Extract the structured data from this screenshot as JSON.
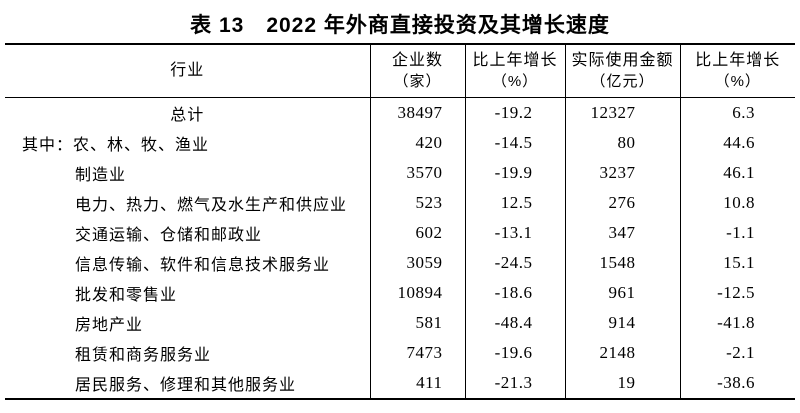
{
  "title": "表 13　2022 年外商直接投资及其增长速度",
  "colors": {
    "background": "#ffffff",
    "text": "#000000",
    "border": "#000000"
  },
  "table": {
    "columns": [
      {
        "label": "行业",
        "unit": ""
      },
      {
        "label": "企业数",
        "unit": "（家）"
      },
      {
        "label": "比上年增长",
        "unit": "（%）"
      },
      {
        "label": "实际使用金额",
        "unit": "（亿元）"
      },
      {
        "label": "比上年增长",
        "unit": "（%）"
      }
    ],
    "rows": [
      {
        "industry": "总计",
        "enterprises": "38497",
        "enterprise_growth": "-19.2",
        "utilized_amount": "12327",
        "amount_growth": "6.3"
      },
      {
        "industry": "其中：农、林、牧、渔业",
        "enterprises": "420",
        "enterprise_growth": "-14.5",
        "utilized_amount": "80",
        "amount_growth": "44.6"
      },
      {
        "industry": "制造业",
        "enterprises": "3570",
        "enterprise_growth": "-19.9",
        "utilized_amount": "3237",
        "amount_growth": "46.1"
      },
      {
        "industry": "电力、热力、燃气及水生产和供应业",
        "enterprises": "523",
        "enterprise_growth": "12.5",
        "utilized_amount": "276",
        "amount_growth": "10.8"
      },
      {
        "industry": "交通运输、仓储和邮政业",
        "enterprises": "602",
        "enterprise_growth": "-13.1",
        "utilized_amount": "347",
        "amount_growth": "-1.1"
      },
      {
        "industry": "信息传输、软件和信息技术服务业",
        "enterprises": "3059",
        "enterprise_growth": "-24.5",
        "utilized_amount": "1548",
        "amount_growth": "15.1"
      },
      {
        "industry": "批发和零售业",
        "enterprises": "10894",
        "enterprise_growth": "-18.6",
        "utilized_amount": "961",
        "amount_growth": "-12.5"
      },
      {
        "industry": "房地产业",
        "enterprises": "581",
        "enterprise_growth": "-48.4",
        "utilized_amount": "914",
        "amount_growth": "-41.8"
      },
      {
        "industry": "租赁和商务服务业",
        "enterprises": "7473",
        "enterprise_growth": "-19.6",
        "utilized_amount": "2148",
        "amount_growth": "-2.1"
      },
      {
        "industry": "居民服务、修理和其他服务业",
        "enterprises": "411",
        "enterprise_growth": "-21.3",
        "utilized_amount": "19",
        "amount_growth": "-38.6"
      }
    ]
  }
}
